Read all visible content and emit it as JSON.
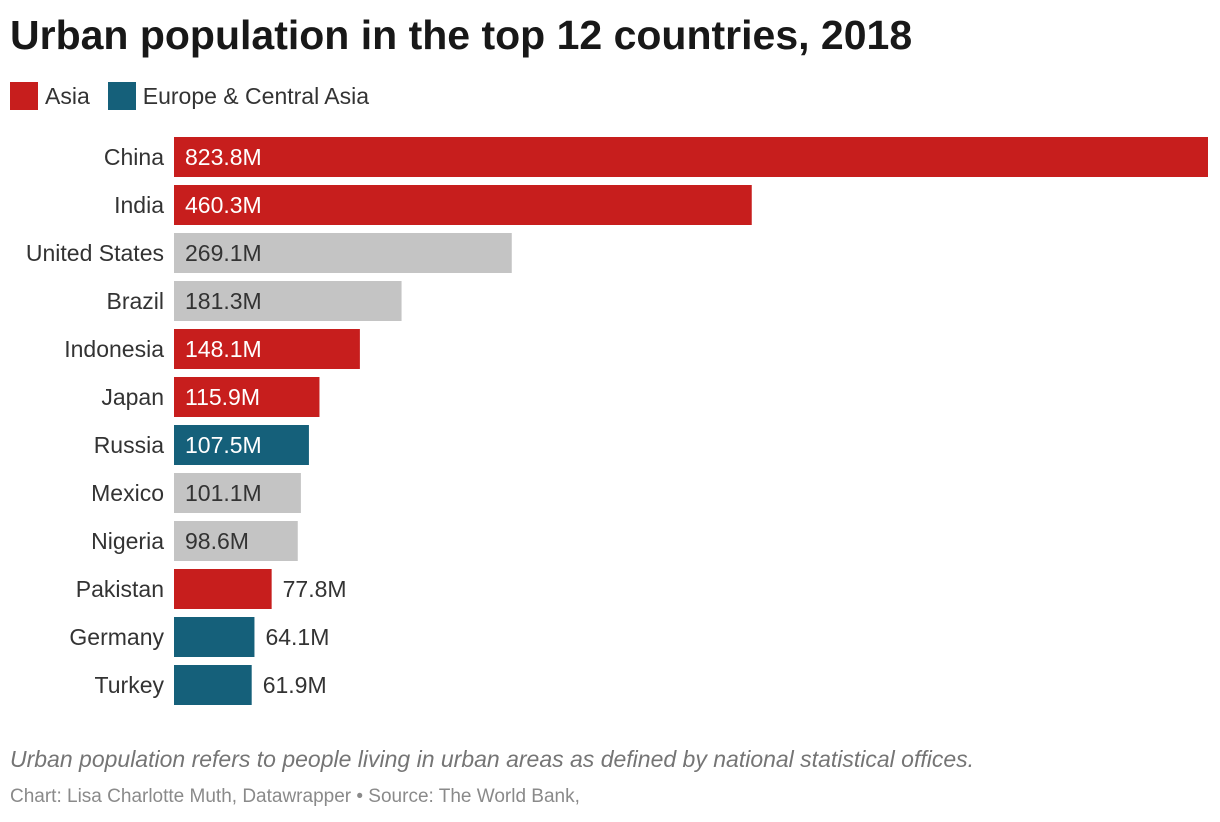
{
  "title": "Urban population in the top 12 countries, 2018",
  "legend": [
    {
      "label": "Asia",
      "color": "#c71e1d"
    },
    {
      "label": "Europe & Central Asia",
      "color": "#15607a"
    }
  ],
  "chart_data": {
    "type": "bar",
    "orientation": "horizontal",
    "title": "Urban population in the top 12 countries, 2018",
    "xlabel": "",
    "ylabel": "",
    "xlim": [
      0,
      823.8
    ],
    "unit": "M",
    "categories": [
      "China",
      "India",
      "United States",
      "Brazil",
      "Indonesia",
      "Japan",
      "Russia",
      "Mexico",
      "Nigeria",
      "Pakistan",
      "Germany",
      "Turkey"
    ],
    "values": [
      823.8,
      460.3,
      269.1,
      181.3,
      148.1,
      115.9,
      107.5,
      101.1,
      98.6,
      77.8,
      64.1,
      61.9
    ],
    "labels": [
      "823.8M",
      "460.3M",
      "269.1M",
      "181.3M",
      "148.1M",
      "115.9M",
      "107.5M",
      "101.1M",
      "98.6M",
      "77.8M",
      "64.1M",
      "61.9M"
    ],
    "regions": [
      "Asia",
      "Asia",
      "Other",
      "Other",
      "Asia",
      "Asia",
      "Europe & Central Asia",
      "Other",
      "Other",
      "Asia",
      "Europe & Central Asia",
      "Europe & Central Asia"
    ],
    "colors": {
      "Asia": "#c71e1d",
      "Europe & Central Asia": "#15607a",
      "Other": "#c4c4c4"
    },
    "label_colors": {
      "Asia": "#ffffff",
      "Europe & Central Asia": "#ffffff",
      "Other": "#333333",
      "outside": "#333333"
    },
    "grid": false
  },
  "notes": "Urban population refers to people living in urban areas as defined by national statistical offices.",
  "credits": "Chart: Lisa Charlotte Muth, Datawrapper • Source: The World Bank,"
}
